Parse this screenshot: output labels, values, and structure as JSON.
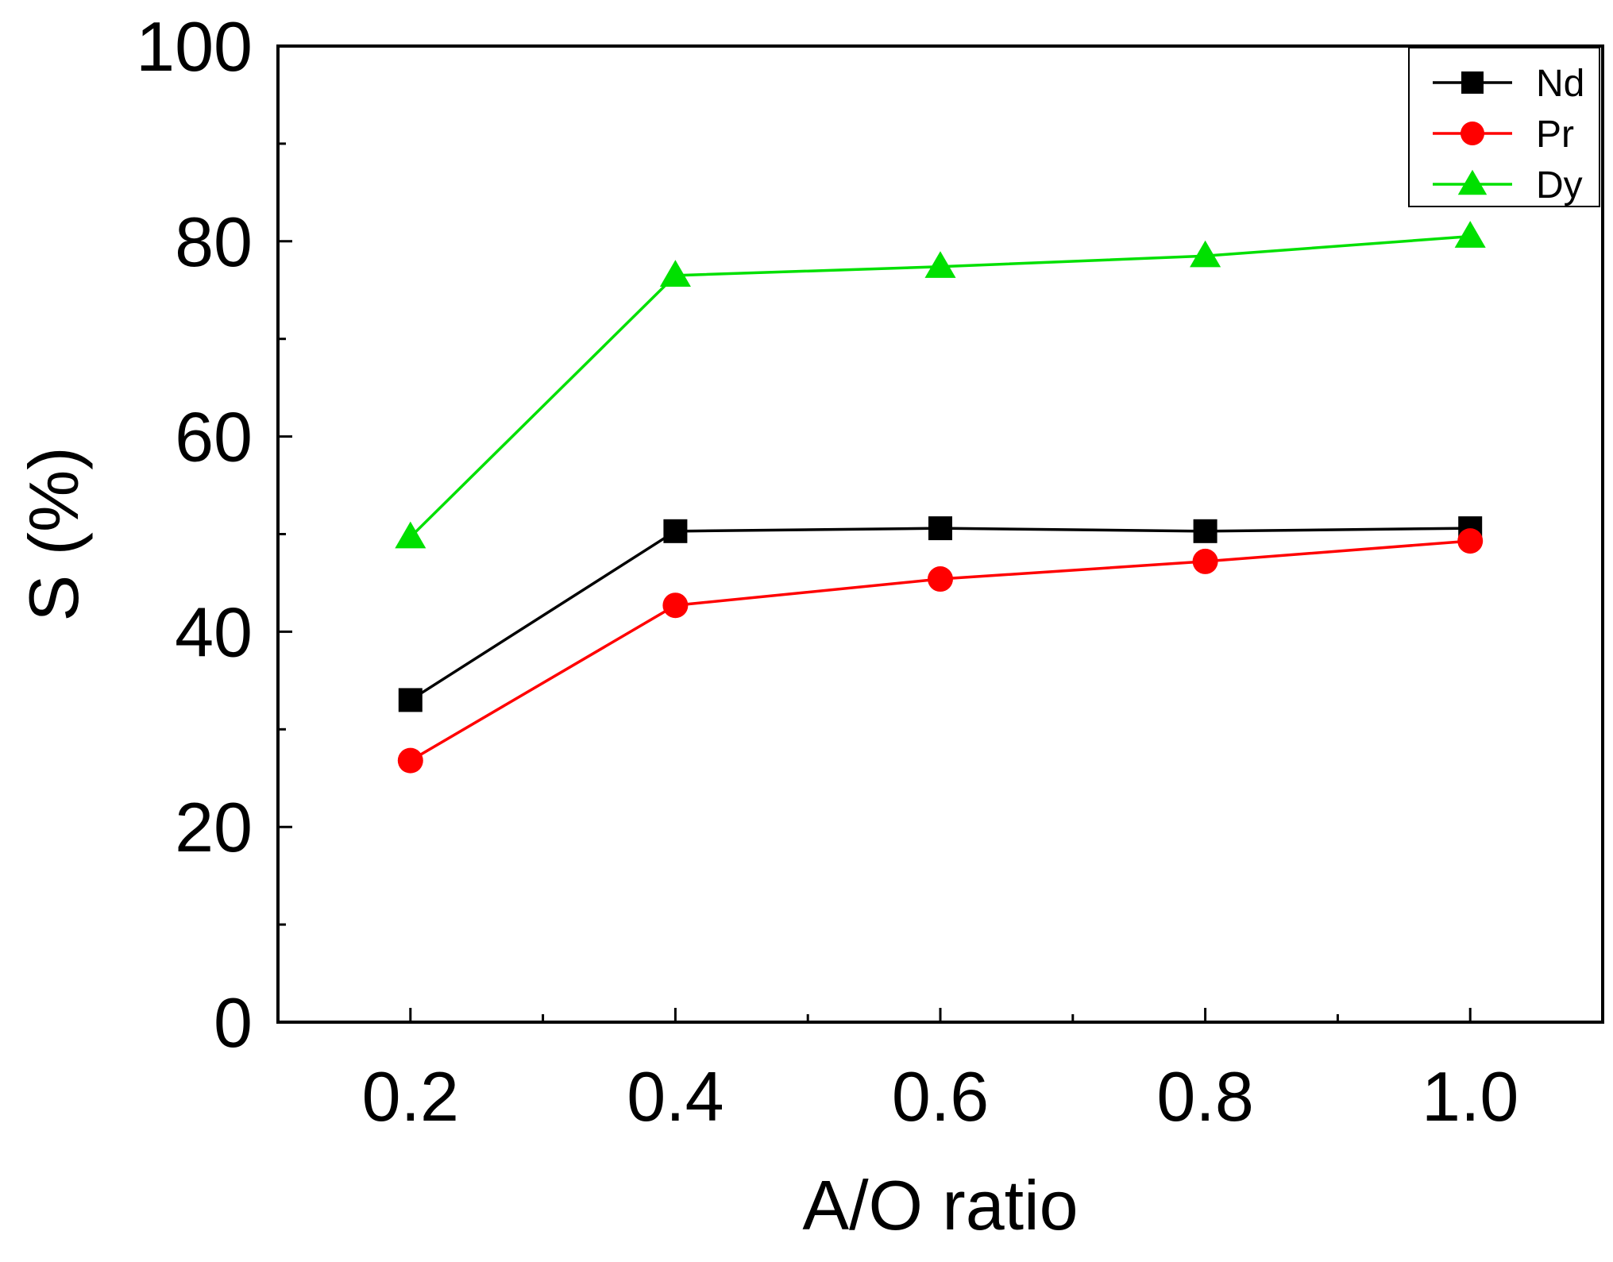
{
  "chart_data": {
    "type": "line",
    "title": "",
    "xlabel": "A/O ratio",
    "ylabel": "S (%)",
    "x": [
      0.2,
      0.4,
      0.6,
      0.8,
      1.0
    ],
    "xticks": [
      "0.2",
      "0.4",
      "0.6",
      "0.8",
      "1.0"
    ],
    "yticks": [
      "0",
      "20",
      "40",
      "60",
      "80",
      "100"
    ],
    "xlim": [
      0.1,
      1.1
    ],
    "ylim": [
      0,
      100
    ],
    "legend_position": "top-right",
    "series": [
      {
        "name": "Nd",
        "color": "#000000",
        "marker": "square",
        "values": [
          33.0,
          50.3,
          50.6,
          50.3,
          50.6
        ]
      },
      {
        "name": "Pr",
        "color": "#ff0000",
        "marker": "circle",
        "values": [
          26.8,
          42.7,
          45.4,
          47.2,
          49.3
        ]
      },
      {
        "name": "Dy",
        "color": "#00e000",
        "marker": "triangle",
        "values": [
          49.7,
          76.5,
          77.4,
          78.5,
          80.5
        ]
      }
    ]
  }
}
